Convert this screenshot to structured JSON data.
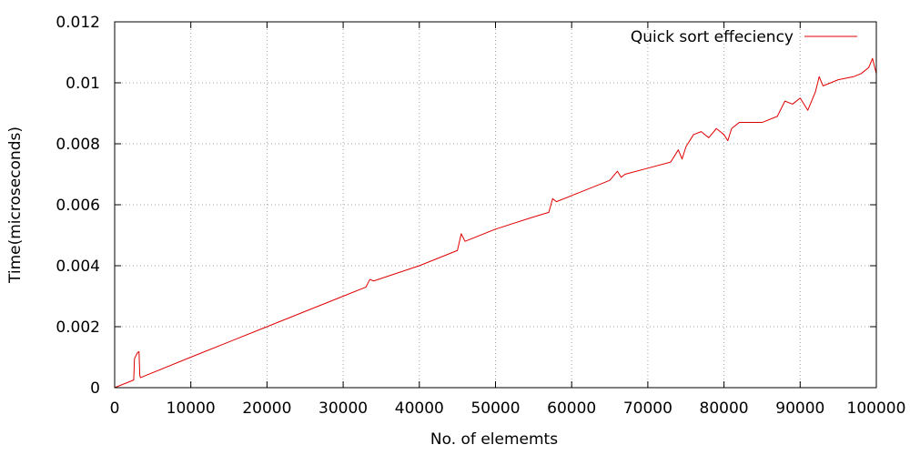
{
  "chart_data": {
    "type": "line",
    "title": "",
    "xlabel": "No. of elememts",
    "ylabel": "Time(microseconds)",
    "xlim": [
      0,
      100000
    ],
    "ylim": [
      0,
      0.012
    ],
    "x_ticks": [
      "0",
      "10000",
      "20000",
      "30000",
      "40000",
      "50000",
      "60000",
      "70000",
      "80000",
      "90000",
      "100000"
    ],
    "y_ticks": [
      "0",
      "0.002",
      "0.004",
      "0.006",
      "0.008",
      "0.01",
      "0.012"
    ],
    "grid": true,
    "legend_position": "top-right",
    "series": [
      {
        "name": "Quick sort effeciency",
        "color": "#e00000",
        "x": [
          0,
          2500,
          2600,
          3000,
          3200,
          3300,
          3400,
          10000,
          20000,
          26000,
          30000,
          33000,
          33500,
          34000,
          40000,
          45000,
          45500,
          46000,
          50000,
          55000,
          57000,
          57500,
          58000,
          60000,
          65000,
          66000,
          66500,
          67000,
          70000,
          73000,
          74000,
          74500,
          75000,
          76000,
          77000,
          78000,
          79000,
          80000,
          80500,
          81000,
          82000,
          85000,
          87000,
          88000,
          89000,
          90000,
          91000,
          92000,
          92500,
          93000,
          95000,
          97000,
          98000,
          99000,
          99500,
          100000
        ],
        "y": [
          0.0,
          0.00025,
          0.00095,
          0.00115,
          0.00118,
          0.0004,
          0.00033,
          0.001,
          0.002,
          0.0026,
          0.003,
          0.0033,
          0.00355,
          0.0035,
          0.004,
          0.0045,
          0.00505,
          0.0048,
          0.0052,
          0.0056,
          0.00575,
          0.0062,
          0.0061,
          0.0063,
          0.0068,
          0.0071,
          0.0069,
          0.007,
          0.0072,
          0.0074,
          0.0078,
          0.0075,
          0.0079,
          0.0083,
          0.0084,
          0.0082,
          0.0085,
          0.0083,
          0.0081,
          0.0085,
          0.0087,
          0.0087,
          0.0089,
          0.0094,
          0.0093,
          0.0095,
          0.0091,
          0.0097,
          0.0102,
          0.0099,
          0.0101,
          0.0102,
          0.0103,
          0.0105,
          0.0108,
          0.0103
        ]
      }
    ]
  }
}
